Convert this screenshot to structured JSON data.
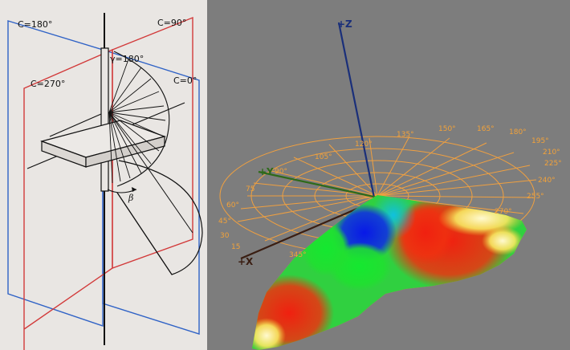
{
  "left_diagram": {
    "planes": {
      "c180": "C=180°",
      "c90": "C=90°",
      "c270": "C=270°",
      "c0": "C=0°"
    },
    "gamma_label": "γ=180°",
    "beta_label": "β"
  },
  "right_plot": {
    "axes": {
      "z": "+Z",
      "y": "+Y",
      "x": "+X"
    },
    "angle_labels": {
      "a15": "15",
      "a30": "30",
      "a45": "45°",
      "a60": "60°",
      "a75": "75",
      "a90": "90°",
      "a105": "105°",
      "a120": "120°",
      "a135": "135°",
      "a150": "150°",
      "a165": "165°",
      "a180": "180°",
      "a195": "195°",
      "a210": "210°",
      "a225": "225°",
      "a240": "240°",
      "a255": "255°",
      "a270": "270°",
      "a345": "345°"
    },
    "colors": {
      "background": "#7d7d7d",
      "grid": "#f0a040",
      "z_axis": "#1a2f7a",
      "y_axis": "#2e6a1a",
      "x_axis": "#3a1e12"
    }
  }
}
